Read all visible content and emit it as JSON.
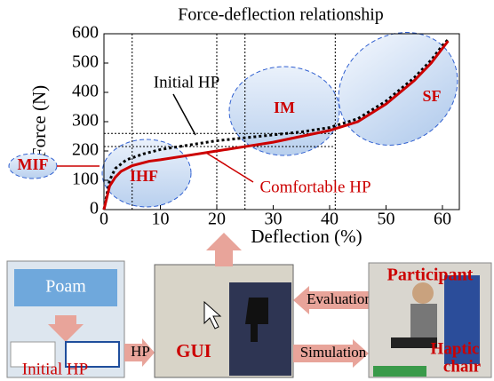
{
  "chart_data": {
    "type": "line",
    "title": "Force-deflection relationship",
    "x_label": "Deflection (%)",
    "y_label": "Force (N)",
    "xlim": [
      0,
      63
    ],
    "ylim": [
      0,
      600
    ],
    "xticks": [
      0,
      10,
      20,
      30,
      40,
      50,
      60
    ],
    "yticks": [
      0,
      100,
      200,
      300,
      400,
      500,
      600
    ],
    "ref_x": [
      5,
      20,
      25,
      41
    ],
    "ref_y": [
      260,
      215
    ],
    "series": [
      {
        "name": "Initial HP",
        "color": "#000000",
        "x": [
          0,
          1,
          2,
          4,
          7,
          10,
          15,
          20,
          25,
          30,
          35,
          40,
          45,
          50,
          55,
          58,
          60,
          61
        ],
        "values": [
          0,
          100,
          140,
          170,
          190,
          205,
          220,
          235,
          245,
          255,
          265,
          280,
          310,
          370,
          450,
          510,
          560,
          580
        ]
      },
      {
        "name": "Comfortable HP",
        "color": "#cc0000",
        "x": [
          0,
          0.5,
          1,
          2,
          3,
          5,
          8,
          10,
          15,
          20,
          25,
          30,
          35,
          40,
          45,
          50,
          55,
          58,
          60,
          61
        ],
        "values": [
          0,
          40,
          80,
          110,
          130,
          150,
          165,
          170,
          185,
          200,
          215,
          230,
          250,
          270,
          300,
          360,
          440,
          500,
          550,
          575
        ]
      }
    ],
    "regions": [
      "MIF",
      "IHF",
      "IM",
      "SF"
    ]
  },
  "diagram": {
    "foam": "Poam",
    "initial_hp": "Initial HP",
    "hp_arrow": "HP",
    "gui": "GUI",
    "evaluation": "Evaluation",
    "simulation": "Simulation",
    "participant": "Participant",
    "haptic_chair": [
      "Haptic",
      "chair"
    ]
  }
}
